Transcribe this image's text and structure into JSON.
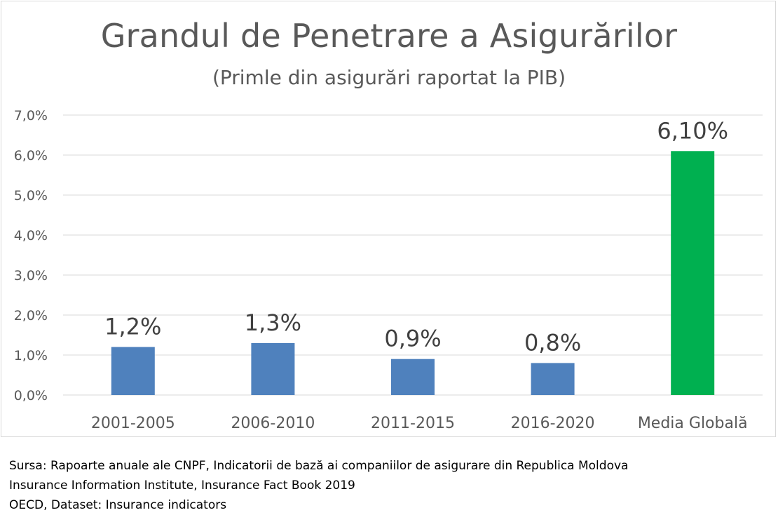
{
  "chart_data": {
    "type": "bar",
    "title": "Grandul de Penetrare a Asigurărilor",
    "subtitle": "(Primle din asigurări raportat la PIB)",
    "categories": [
      "2001-2005",
      "2006-2010",
      "2011-2015",
      "2016-2020",
      "Media Globală"
    ],
    "values": [
      1.2,
      1.3,
      0.9,
      0.8,
      6.1
    ],
    "data_labels": [
      "1,2%",
      "1,3%",
      "0,9%",
      "0,8%",
      "6,10%"
    ],
    "bar_colors": [
      "#4f81bd",
      "#4f81bd",
      "#4f81bd",
      "#4f81bd",
      "#00b050"
    ],
    "ylim": [
      0,
      7
    ],
    "yticks": [
      0,
      1,
      2,
      3,
      4,
      5,
      6,
      7
    ],
    "ytick_labels": [
      "0,0%",
      "1,0%",
      "2,0%",
      "3,0%",
      "4,0%",
      "5,0%",
      "6,0%",
      "7,0%"
    ],
    "grid": true,
    "xlabel": "",
    "ylabel": ""
  },
  "source": {
    "lines": [
      "Sursa: Rapoarte anuale ale CNPF, Indicatorii de bază ai companiilor de asigurare din Republica Moldova",
      "Insurance Information Institute, Insurance Fact Book  2019",
      "OECD, Dataset: Insurance indicators"
    ]
  }
}
